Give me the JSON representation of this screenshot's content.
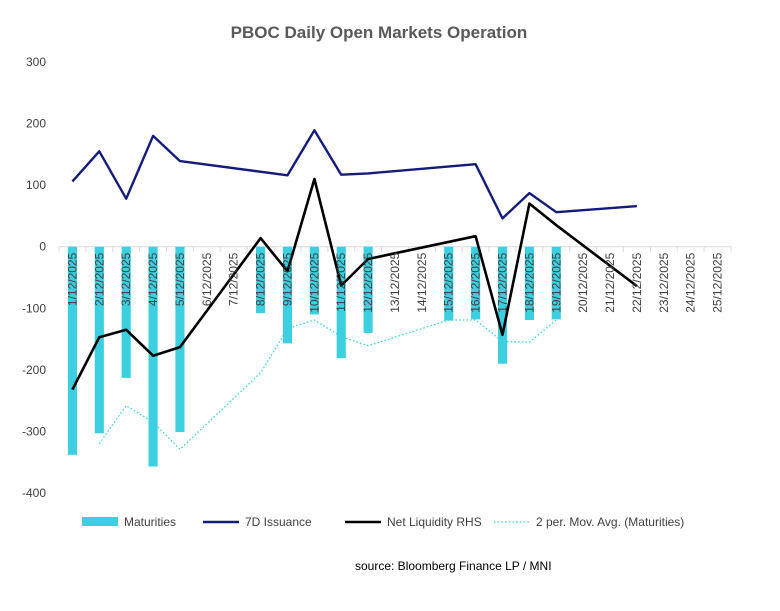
{
  "chart_data": {
    "type": "bar+line",
    "title": "PBOC Daily Open Markets Operation",
    "categories": [
      "1/12/2025",
      "2/12/2025",
      "3/12/2025",
      "4/12/2025",
      "5/12/2025",
      "6/12/2025",
      "7/12/2025",
      "8/12/2025",
      "9/12/2025",
      "10/12/2025",
      "11/12/2025",
      "12/12/2025",
      "13/12/2025",
      "14/12/2025",
      "15/12/2025",
      "16/12/2025",
      "17/12/2025",
      "18/12/2025",
      "19/12/2025",
      "20/12/2025",
      "21/12/2025",
      "22/12/2025",
      "23/12/2025",
      "24/12/2025",
      "25/12/2025"
    ],
    "ylim": [
      -400,
      300
    ],
    "yticks": [
      "300",
      "200",
      "100",
      "0",
      "-100",
      "-200",
      "-300",
      "-400"
    ],
    "ytick_values": [
      300,
      200,
      100,
      0,
      -100,
      -200,
      -300,
      -400
    ],
    "series": [
      {
        "name": "Maturities",
        "kind": "bar",
        "color": "#3ccfe0",
        "values": [
          -338,
          -303,
          -213,
          -357,
          -301,
          null,
          null,
          -108,
          -157,
          -110,
          -181,
          -140,
          null,
          null,
          -120,
          -118,
          -190,
          -119,
          -118,
          null,
          null,
          null,
          null,
          null,
          null
        ]
      },
      {
        "name": "7D Issuance",
        "kind": "line",
        "color": "#141b7a",
        "values": [
          106,
          155,
          78,
          180,
          139,
          null,
          null,
          null,
          116,
          189,
          117,
          119,
          null,
          null,
          null,
          134,
          46,
          87,
          56,
          null,
          null,
          66,
          null,
          null,
          null
        ]
      },
      {
        "name": "Net Liquidity RHS",
        "kind": "line",
        "color": "#000000",
        "values": [
          -232,
          -147,
          -135,
          -177,
          -163,
          null,
          null,
          14,
          -40,
          110,
          -63,
          -20,
          null,
          null,
          null,
          17,
          -143,
          70,
          35,
          null,
          null,
          -64,
          null,
          null,
          null
        ]
      },
      {
        "name": "2 per. Mov. Avg. (Maturities)",
        "kind": "line",
        "style": "dotted",
        "color": "#3ccfe0",
        "values": [
          null,
          -320,
          -258,
          -285,
          -329,
          null,
          null,
          -205,
          -133,
          -119,
          -146,
          -161,
          null,
          null,
          -119,
          -119,
          -154,
          -155,
          -119,
          null,
          null,
          null,
          null,
          null,
          null
        ]
      }
    ],
    "legend_position": "bottom",
    "source": "source: Bloomberg Finance LP / MNI"
  }
}
